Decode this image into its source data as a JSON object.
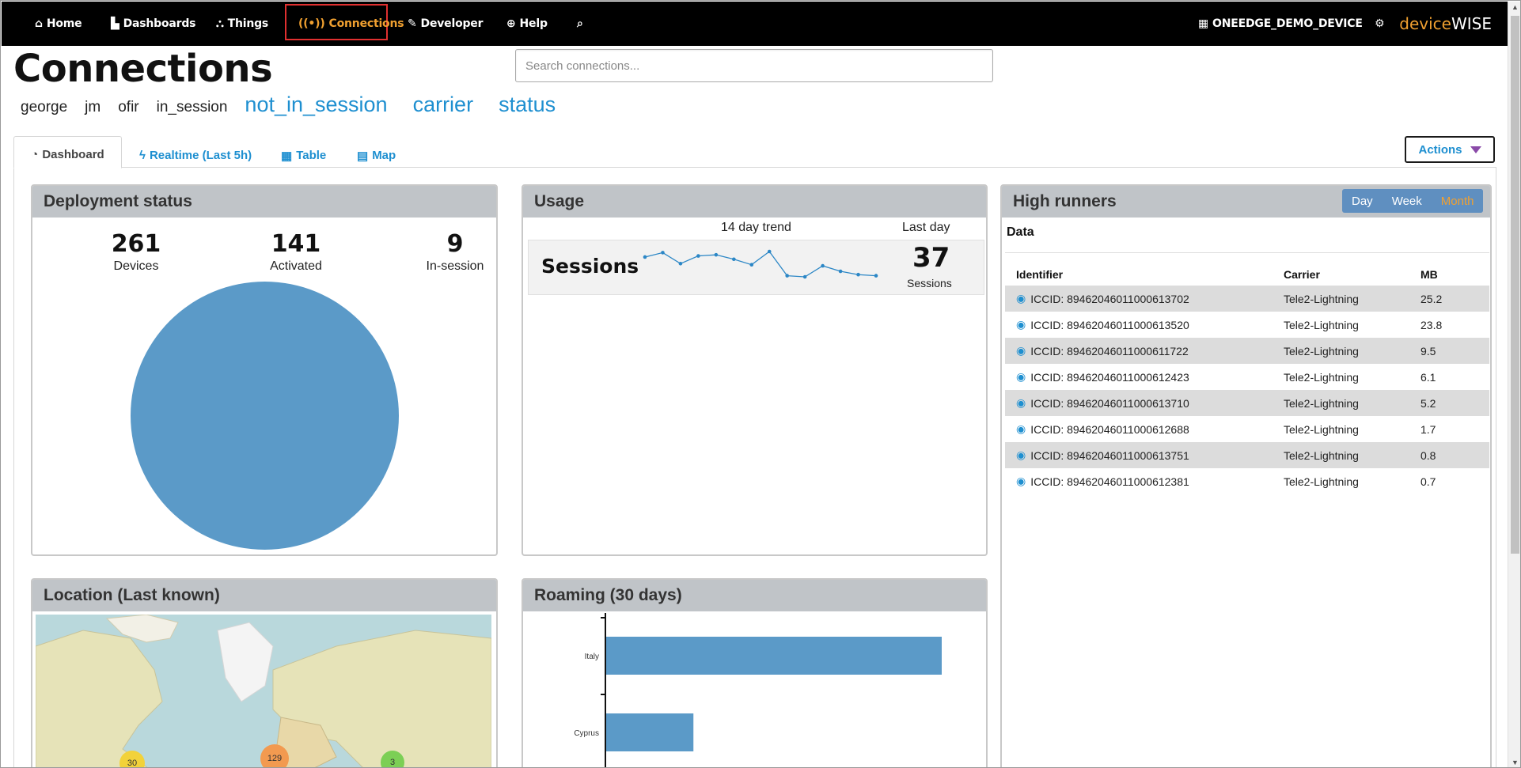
{
  "nav": {
    "home": "Home",
    "dashboards": "Dashboards",
    "things": "Things",
    "connections": "Connections",
    "developer": "Developer",
    "help": "Help",
    "org": "ONEEDGE_DEMO_DEVICE",
    "brand_a": "device",
    "brand_b": "WISE"
  },
  "page": {
    "title": "Connections",
    "search_placeholder": "Search connections..."
  },
  "filters": [
    "george",
    "jm",
    "ofir",
    "in_session",
    "not_in_session",
    "carrier",
    "status"
  ],
  "tabs": {
    "dashboard": "Dashboard",
    "realtime": "Realtime (Last 5h)",
    "table": "Table",
    "map": "Map",
    "actions": "Actions"
  },
  "deployment": {
    "title": "Deployment status",
    "devices_num": "261",
    "devices_lbl": "Devices",
    "activated_num": "141",
    "activated_lbl": "Activated",
    "insession_num": "9",
    "insession_lbl": "In-session",
    "pie_color": "#5b9ac8"
  },
  "usage": {
    "title": "Usage",
    "trend_label": "14 day trend",
    "lastday_label": "Last day",
    "sessions_label": "Sessions",
    "sessions_num": "37",
    "sessions_sub": "Sessions",
    "trend": [
      40,
      44,
      34,
      41,
      42,
      38,
      33,
      45,
      23,
      22,
      32,
      27,
      24,
      23
    ]
  },
  "high_runners": {
    "title": "High runners",
    "ranges": [
      "Day",
      "Week",
      "Month"
    ],
    "data_label": "Data",
    "headers": [
      "Identifier",
      "Carrier",
      "MB"
    ],
    "rows": [
      {
        "id": "ICCID: 89462046011000613702",
        "carrier": "Tele2-Lightning",
        "mb": "25.2"
      },
      {
        "id": "ICCID: 89462046011000613520",
        "carrier": "Tele2-Lightning",
        "mb": "23.8"
      },
      {
        "id": "ICCID: 89462046011000611722",
        "carrier": "Tele2-Lightning",
        "mb": "9.5"
      },
      {
        "id": "ICCID: 89462046011000612423",
        "carrier": "Tele2-Lightning",
        "mb": "6.1"
      },
      {
        "id": "ICCID: 89462046011000613710",
        "carrier": "Tele2-Lightning",
        "mb": "5.2"
      },
      {
        "id": "ICCID: 89462046011000612688",
        "carrier": "Tele2-Lightning",
        "mb": "1.7"
      },
      {
        "id": "ICCID: 89462046011000613751",
        "carrier": "Tele2-Lightning",
        "mb": "0.8"
      },
      {
        "id": "ICCID: 89462046011000612381",
        "carrier": "Tele2-Lightning",
        "mb": "0.7"
      }
    ]
  },
  "location": {
    "title": "Location (Last known)",
    "clusters": [
      "30",
      "129",
      "3"
    ]
  },
  "roaming": {
    "title": "Roaming (30 days)"
  },
  "chart_data": {
    "type": "bar",
    "categories": [
      "Italy",
      "Cyprus"
    ],
    "values": [
      100,
      26
    ]
  }
}
